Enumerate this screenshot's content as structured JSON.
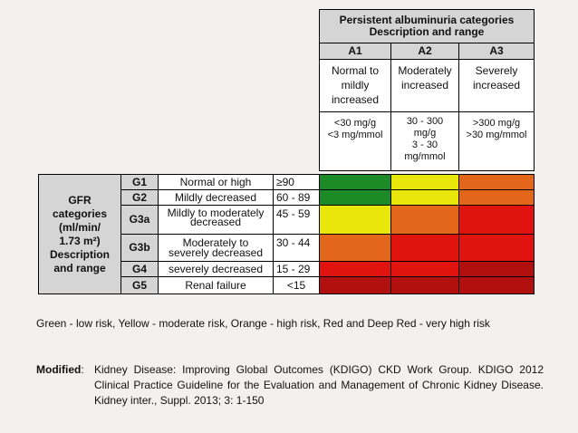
{
  "table": {
    "header": {
      "title_line1": "Persistent albuminuria categories",
      "title_line2": "Description and range"
    },
    "albuminuria_categories": [
      {
        "code": "A1",
        "desc_lines": [
          "Normal to",
          "mildly",
          "increased"
        ],
        "range_lines": [
          "<30 mg/g",
          "<3 mg/mmol"
        ]
      },
      {
        "code": "A2",
        "desc_lines": [
          "Moderately",
          "increased"
        ],
        "range_lines": [
          "30 - 300",
          "mg/g",
          "3 - 30",
          "mg/mmol"
        ]
      },
      {
        "code": "A3",
        "desc_lines": [
          "Severely",
          "increased"
        ],
        "range_lines": [
          ">300 mg/g",
          ">30 mg/mmol"
        ]
      }
    ],
    "gfr_label_lines": [
      "GFR",
      "categories",
      "(ml/min/",
      "1.73 m²)",
      "Description",
      "and range"
    ],
    "gfr_rows": [
      {
        "code": "G1",
        "desc": "Normal or high",
        "desc2": "",
        "range": "≥90",
        "risk": [
          "green",
          "yellow",
          "orange"
        ]
      },
      {
        "code": "G2",
        "desc": "Mildly decreased",
        "desc2": "",
        "range": "60 - 89",
        "risk": [
          "green",
          "yellow",
          "orange"
        ]
      },
      {
        "code": "G3a",
        "desc": "Mildly to moderately",
        "desc2": "decreased",
        "range": "45 - 59",
        "risk": [
          "yellow",
          "orange",
          "red"
        ]
      },
      {
        "code": "G3b",
        "desc": "Moderately to",
        "desc2": "severely decreased",
        "range": "30 - 44",
        "risk": [
          "orange",
          "red",
          "red"
        ]
      },
      {
        "code": "G4",
        "desc": "severely decreased",
        "desc2": "",
        "range": "15 - 29",
        "risk": [
          "red",
          "red",
          "deep-red"
        ]
      },
      {
        "code": "G5",
        "desc": "Renal failure",
        "desc2": "",
        "range": "<15",
        "risk": [
          "deep-red",
          "deep-red",
          "deep-red"
        ]
      }
    ],
    "colors": {
      "green": "#1c8a25",
      "yellow": "#e9e60c",
      "orange": "#e4661a",
      "red": "#e0130f",
      "deep-red": "#b1100f",
      "header_gray": "#d5d5d5"
    }
  },
  "legend_text": "Green - low risk, Yellow - moderate risk, Orange - high risk, Red and Deep Red - very high risk",
  "reference": {
    "label": "Modified",
    "text": "Kidney Disease: Improving Global Outcomes (KDIGO) CKD Work Group. KDIGO 2012 Clinical Practice Guideline for the Evaluation and Management of Chronic Kidney Disease. Kidney inter., Suppl. 2013; 3: 1-150"
  }
}
